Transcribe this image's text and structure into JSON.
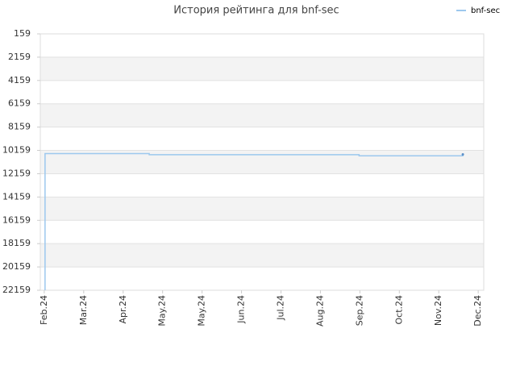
{
  "chart_data": {
    "type": "line",
    "title": "История рейтинга для bnf-sec",
    "series": [
      {
        "name": "bnf-sec",
        "color": "#9cc8ee",
        "x": [
          0.02,
          0.02,
          2.66,
          2.66,
          7.98,
          7.98,
          10.61,
          10.61
        ],
        "values": [
          22159,
          10435,
          10435,
          10530,
          10530,
          10620,
          10620,
          10500
        ]
      }
    ],
    "xlim": [
      -0.1,
      11.14
    ],
    "xticks": [
      {
        "value": 0,
        "label": "Feb.24"
      },
      {
        "value": 1,
        "label": "Mar.24"
      },
      {
        "value": 2,
        "label": "Apr.24"
      },
      {
        "value": 3,
        "label": "May.24"
      },
      {
        "value": 4,
        "label": "May.24"
      },
      {
        "value": 5,
        "label": "Jun.24"
      },
      {
        "value": 6,
        "label": "Jul.24"
      },
      {
        "value": 7,
        "label": "Aug.24"
      },
      {
        "value": 8,
        "label": "Sep.24"
      },
      {
        "value": 9,
        "label": "Oct.24"
      },
      {
        "value": 10,
        "label": "Nov.24"
      },
      {
        "value": 11,
        "label": "Dec.24"
      }
    ],
    "ylim": [
      159,
      22159
    ],
    "yticks": [
      159,
      2159,
      4159,
      6159,
      8159,
      10159,
      12159,
      14159,
      16159,
      18159,
      20159,
      22159
    ],
    "y_inverted": true,
    "grid": true,
    "banded": true,
    "legend": "top-right"
  }
}
